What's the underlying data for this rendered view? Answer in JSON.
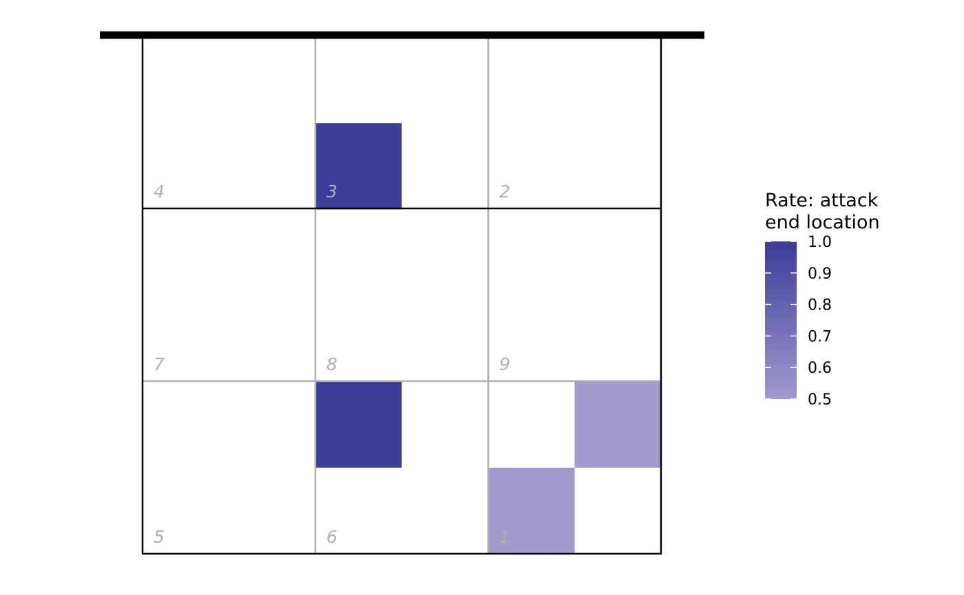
{
  "chart_data": {
    "type": "heatmap",
    "title": "",
    "legend": {
      "title_lines": [
        "Rate: attack",
        "end location"
      ],
      "ticks": [
        1.0,
        0.9,
        0.8,
        0.7,
        0.6,
        0.5
      ],
      "tick_labels": [
        "1.0",
        "0.9",
        "0.8",
        "0.7",
        "0.6",
        "0.5"
      ],
      "range": [
        0.5,
        1.0
      ],
      "low_color": "#a29ace",
      "high_color": "#3c3c99",
      "placement": "right"
    },
    "zone_labels": [
      "4",
      "3",
      "2",
      "7",
      "8",
      "9",
      "5",
      "6",
      "1"
    ],
    "cell_grid": {
      "cols": 6,
      "rows": 6
    },
    "cells": [
      {
        "col": 2,
        "row": 1,
        "value": 1.0
      },
      {
        "col": 2,
        "row": 4,
        "value": 1.0
      },
      {
        "col": 5,
        "row": 4,
        "value": 0.5
      },
      {
        "col": 4,
        "row": 5,
        "value": 0.5
      }
    ],
    "colors": {
      "net": "#000000",
      "court_line": "#000000",
      "zone_line": "#b0b0b0",
      "zone_label": "#b0b0b0"
    }
  }
}
